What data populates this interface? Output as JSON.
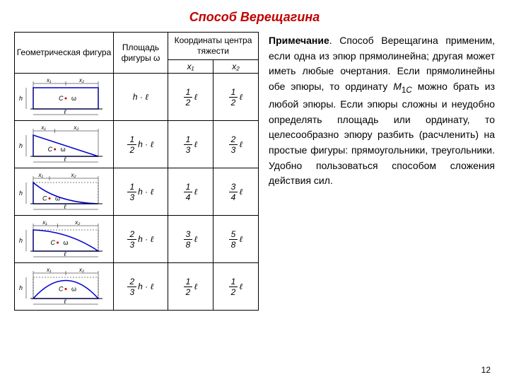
{
  "title": "Способ Верещагина",
  "note_html": "<span class='b'>Примечание</span>. Способ Вереща­гина  применим, если одна из эпюр прямолинейна; другая может иметь любые очертания. Если прямолинейны обе эпю­ры, то ординату <span class='i'>M</span><sub>1<span class='i'>C</span></sub> можно брать из любой эпюры. Если эпюры сложны и неудобно оп­ределять площадь или орди­нату, то целесообразно эпюру разбить (расчленить) на прос­тые фигуры: прямоугольники, треугольники. Удобно пользо­ваться способом сложения действия сил.",
  "pagenum": "12",
  "headers": {
    "fig": "Геометрическая\nфигура",
    "area": "Площадь\nфигуры\nω",
    "coord": "Координаты\nцентра тяжести",
    "x1": "x₁",
    "x2": "x₂"
  },
  "rows": [
    {
      "area_n": "",
      "area_d": "",
      "area_hl": "h · ℓ",
      "x1_n": "1",
      "x1_d": "2",
      "x2_n": "1",
      "x2_d": "2"
    },
    {
      "area_n": "1",
      "area_d": "2",
      "area_hl": "h · ℓ",
      "x1_n": "1",
      "x1_d": "3",
      "x2_n": "2",
      "x2_d": "3"
    },
    {
      "area_n": "1",
      "area_d": "3",
      "area_hl": "h · ℓ",
      "x1_n": "1",
      "x1_d": "4",
      "x2_n": "3",
      "x2_d": "4"
    },
    {
      "area_n": "2",
      "area_d": "3",
      "area_hl": "h · ℓ",
      "x1_n": "3",
      "x1_d": "8",
      "x2_n": "5",
      "x2_d": "8"
    },
    {
      "area_n": "2",
      "area_d": "3",
      "area_hl": "h · ℓ",
      "x1_n": "1",
      "x1_d": "2",
      "x2_n": "1",
      "x2_d": "2"
    }
  ],
  "shapes": [
    "rect",
    "tri",
    "concave",
    "convex",
    "arch"
  ],
  "shape_color": "#0000cc",
  "dim_color": "#000"
}
